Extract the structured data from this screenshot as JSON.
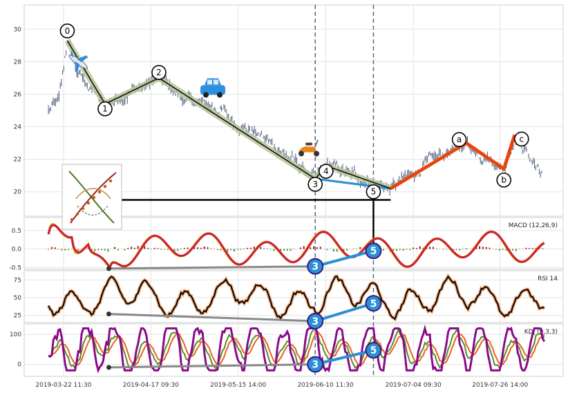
{
  "chart_data": {
    "type": "line",
    "x_ticks": [
      "2019-03-22 11:30",
      "2019-04-17 09:30",
      "2019-05-15 14:00",
      "2019-06-10 11:30",
      "2019-07-04 09:30",
      "2019-07-26 14:00"
    ],
    "grid": true,
    "main": {
      "ylim": [
        18.5,
        31.5
      ],
      "y_ticks": [
        20,
        22,
        24,
        26,
        28,
        30
      ],
      "price_line_color": "#4a5878",
      "wave_labels": [
        "0",
        "1",
        "2",
        "3",
        "4",
        "5",
        "a",
        "b",
        "c"
      ],
      "impulse_wave": [
        {
          "label": "0",
          "x": 0.08,
          "y": 29.3
        },
        {
          "label": "1",
          "x": 0.15,
          "y": 25.4
        },
        {
          "label": "2",
          "x": 0.25,
          "y": 27.0
        },
        {
          "label": "3",
          "x": 0.54,
          "y": 20.8
        },
        {
          "label": "4",
          "x": 0.56,
          "y": 21.6
        },
        {
          "label": "5",
          "x": 0.68,
          "y": 20.2
        }
      ],
      "correction_wave": [
        {
          "label": "5",
          "x": 0.68,
          "y": 20.2
        },
        {
          "label": "a",
          "x": 0.82,
          "y": 23.0
        },
        {
          "label": "b",
          "x": 0.89,
          "y": 21.4
        },
        {
          "label": "c",
          "x": 0.91,
          "y": 23.5
        }
      ],
      "correction_color": "#e8460e",
      "impulse_highlight_color": "#b8c79a",
      "divergence_segment_color": "#2a8fd6",
      "marker_icons": [
        "airplane-icon",
        "car-icon",
        "scooter-icon",
        "logo-thumbnail-icon"
      ]
    },
    "macd": {
      "title": "MACD (12,26,9)",
      "ylim": [
        -0.55,
        0.85
      ],
      "y_ticks": [
        -0.5,
        0.0,
        0.5
      ],
      "line_colors": [
        "#f0a000",
        "#c8203c"
      ],
      "hist_colors": {
        "positive": "#a01818",
        "negative": "#5a8a1a"
      }
    },
    "rsi": {
      "title": "RSI 14",
      "ylim": [
        15,
        88
      ],
      "y_ticks": [
        25,
        50,
        75
      ],
      "line_color": "#000000",
      "glow_color": "#f0a878"
    },
    "kdj": {
      "title": "KDJ (9,3,3)",
      "ylim": [
        -40,
        135
      ],
      "y_ticks": [
        0,
        100
      ],
      "line_colors": [
        "#8a0a8a",
        "#5a8a2a",
        "#e86020"
      ]
    },
    "divergence_labels": [
      "3",
      "5"
    ]
  }
}
